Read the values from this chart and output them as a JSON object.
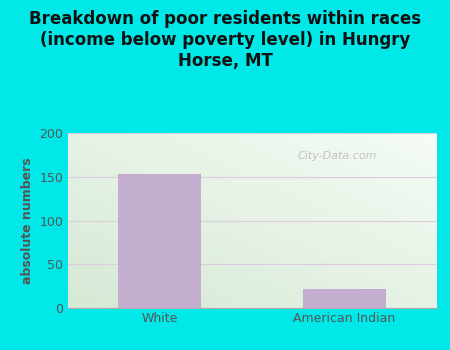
{
  "title": "Breakdown of poor residents within races\n(income below poverty level) in Hungry\nHorse, MT",
  "categories": [
    "White",
    "American Indian"
  ],
  "values": [
    153,
    22
  ],
  "bar_color": "#c4aed0",
  "ylabel": "absolute numbers",
  "ylim": [
    0,
    200
  ],
  "yticks": [
    0,
    50,
    100,
    150,
    200
  ],
  "title_fontsize": 12,
  "label_fontsize": 9,
  "tick_fontsize": 9,
  "bg_outer": "#00e8e8",
  "watermark": "City-Data.com",
  "title_color": "#111111",
  "axis_label_color": "#555555",
  "tick_color": "#555555",
  "grid_color": "#ddccdd",
  "plot_bg_colors": [
    "#d6efd6",
    "#f5fbf5"
  ],
  "bar_positions": [
    0,
    1
  ],
  "bar_width": 0.45
}
